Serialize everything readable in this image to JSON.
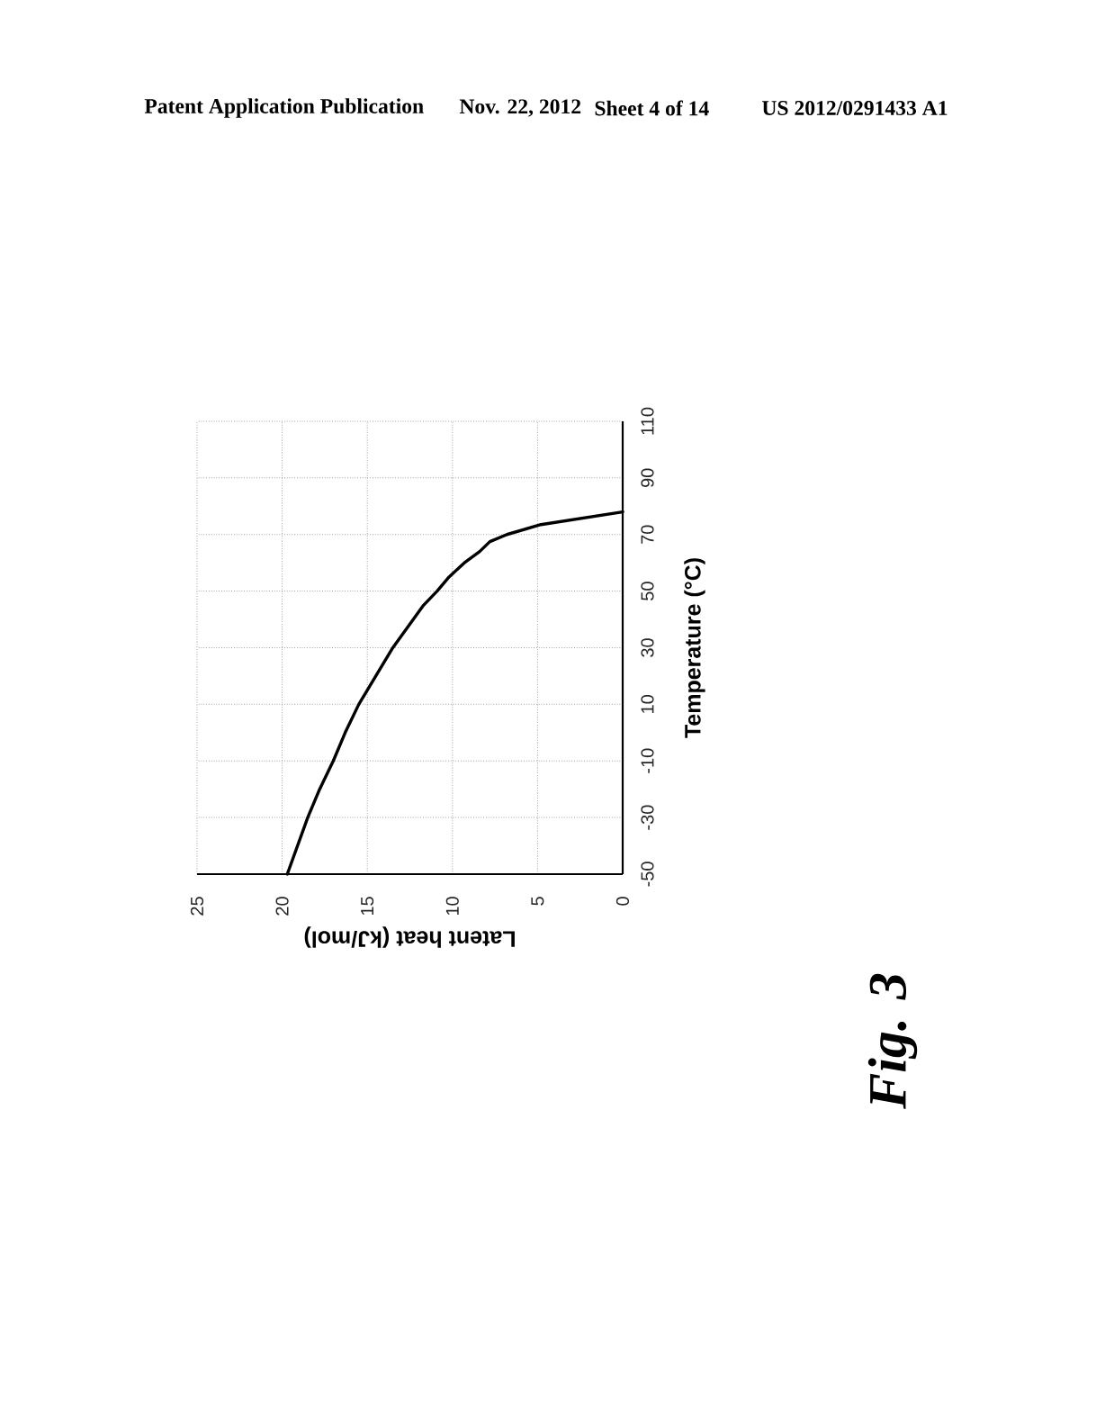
{
  "chart_data": {
    "type": "line",
    "xlabel": "Latent heat (kJ/mol)",
    "ylabel": "Temperature (°C)",
    "x": [
      19.7,
      19.1,
      18.5,
      17.8,
      17.0,
      16.3,
      15.5,
      14.5,
      14.0,
      13.5,
      12.9,
      12.3,
      11.7,
      10.9,
      10.2,
      9.3,
      8.4,
      7.8,
      6.8,
      4.8,
      0
    ],
    "values": [
      -50,
      -40,
      -30,
      -20,
      -10,
      0,
      10,
      20,
      25,
      30,
      35,
      40,
      45,
      50,
      55,
      60,
      64,
      67.5,
      70,
      73.5,
      78
    ],
    "color": "#000000",
    "xlim": [
      25,
      0
    ],
    "xticks": [
      25,
      20,
      15,
      10,
      5,
      0
    ],
    "ylim": [
      -50,
      110
    ],
    "yticks": [
      -50,
      -30,
      -10,
      10,
      30,
      50,
      70,
      90,
      110
    ],
    "grid": true,
    "marker": "none",
    "line_style": "solid",
    "annotations": [
      "Patent Application Publication",
      "Nov. 22, 2012",
      "Sheet 4 of 14",
      "US 2012/0291433 A1",
      "Fig. 3"
    ]
  }
}
